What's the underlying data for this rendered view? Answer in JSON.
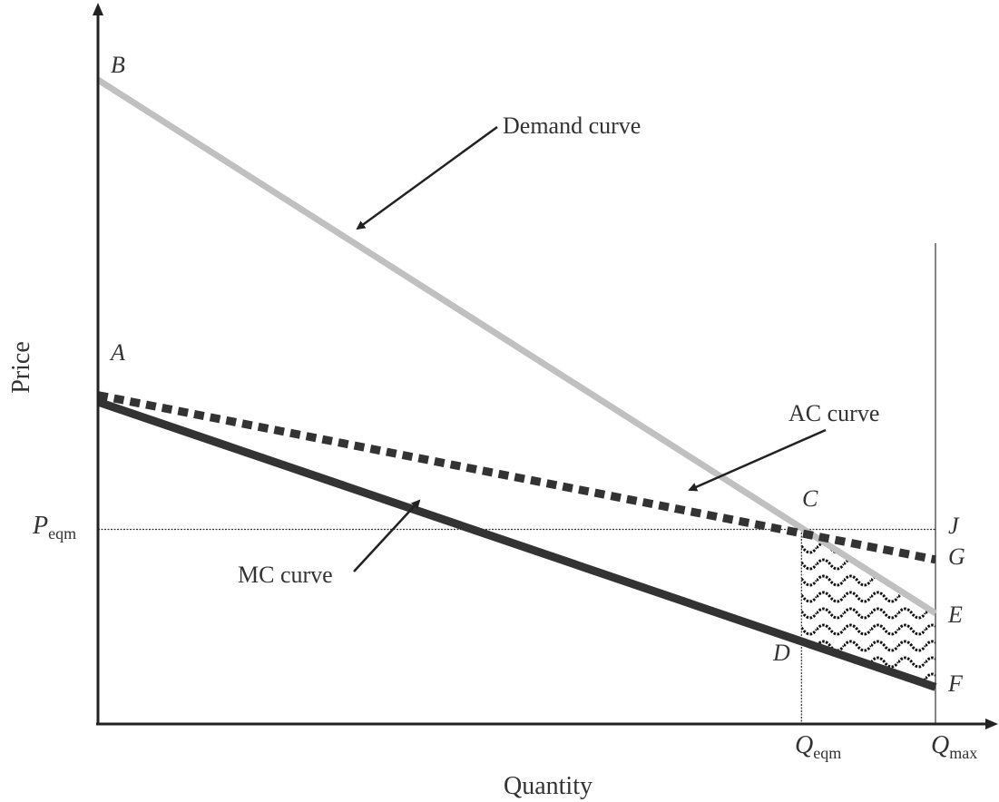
{
  "chart_data": {
    "type": "line",
    "xlabel": "Quantity",
    "ylabel": "Price",
    "axis_ticks_printed": false,
    "colors": {
      "demand": "#c0c0c0",
      "ac": "#333333",
      "mc": "#333333",
      "guides": "#333333",
      "axes": "#222222"
    },
    "tick_labels": {
      "p_eqm": {
        "main": "P",
        "sub": "eqm"
      },
      "q_eqm": {
        "main": "Q",
        "sub": "eqm"
      },
      "q_max": {
        "main": "Q",
        "sub": "max"
      }
    },
    "series": [
      {
        "name": "Demand curve",
        "style": "solid-light",
        "from": [
          0,
          9.6
        ],
        "to": [
          1.0,
          1.65
        ]
      },
      {
        "name": "AC curve",
        "style": "dashed-thick",
        "from": [
          0,
          4.9
        ],
        "to": [
          1.0,
          2.45
        ]
      },
      {
        "name": "MC curve",
        "style": "solid-thick",
        "from": [
          0,
          4.8
        ],
        "to": [
          1.0,
          0.55
        ]
      }
    ],
    "points": [
      {
        "label": "A",
        "x": 0,
        "y": 4.9
      },
      {
        "label": "B",
        "x": 0,
        "y": 9.6
      },
      {
        "label": "C",
        "x": 0.84,
        "y": 2.9
      },
      {
        "label": "D",
        "x": 0.84,
        "y": 1.25
      },
      {
        "label": "E",
        "x": 1.0,
        "y": 1.65
      },
      {
        "label": "F",
        "x": 1.0,
        "y": 0.55
      },
      {
        "label": "G",
        "x": 1.0,
        "y": 2.45
      },
      {
        "label": "J",
        "x": 1.0,
        "y": 2.9
      }
    ],
    "guides": {
      "p_eqm": 2.9,
      "q_eqm": 0.84,
      "q_max": 1.0
    },
    "shaded_region": {
      "pattern": "wavy",
      "corners": [
        "C",
        "E",
        "F",
        "D"
      ]
    },
    "annotations": [
      {
        "text": "Demand curve",
        "target": "Demand curve"
      },
      {
        "text": "AC curve",
        "target": "AC curve"
      },
      {
        "text": "MC curve",
        "target": "MC curve"
      }
    ]
  }
}
